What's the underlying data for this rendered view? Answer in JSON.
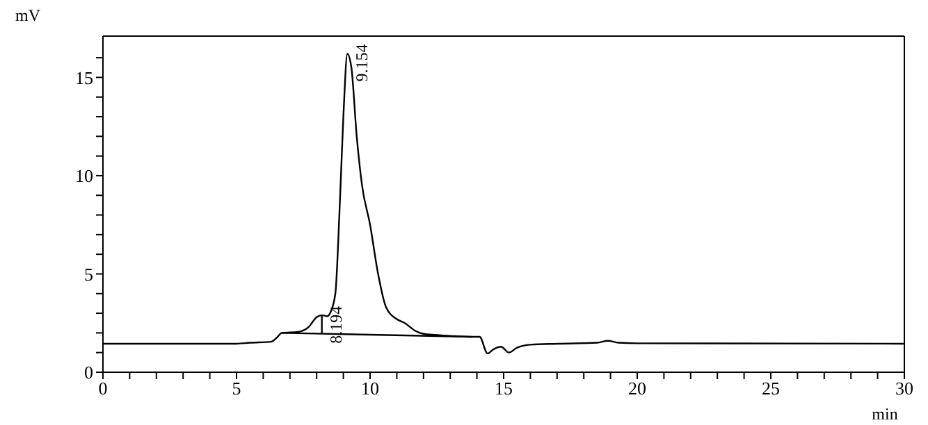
{
  "chart_data": {
    "type": "line",
    "xlabel": "min",
    "ylabel": "mV",
    "xlim": [
      0,
      30
    ],
    "ylim": [
      0,
      17.1
    ],
    "xticks": [
      0,
      {
        "value": 1,
        "label": null
      },
      {
        "value": 2,
        "label": null
      },
      {
        "value": 3,
        "label": null
      },
      {
        "value": 4,
        "label": null
      },
      5,
      {
        "value": 6,
        "label": null
      },
      {
        "value": 7,
        "label": null
      },
      {
        "value": 8,
        "label": null
      },
      {
        "value": 9,
        "label": null
      },
      10,
      {
        "value": 11,
        "label": null
      },
      {
        "value": 12,
        "label": null
      },
      {
        "value": 13,
        "label": null
      },
      {
        "value": 14,
        "label": null
      },
      15,
      {
        "value": 16,
        "label": null
      },
      {
        "value": 17,
        "label": null
      },
      {
        "value": 18,
        "label": null
      },
      {
        "value": 19,
        "label": null
      },
      20,
      {
        "value": 21,
        "label": null
      },
      {
        "value": 22,
        "label": null
      },
      {
        "value": 23,
        "label": null
      },
      {
        "value": 24,
        "label": null
      },
      25,
      {
        "value": 26,
        "label": null
      },
      {
        "value": 27,
        "label": null
      },
      {
        "value": 28,
        "label": null
      },
      {
        "value": 29,
        "label": null
      },
      30
    ],
    "yticks": [
      0,
      {
        "value": 1,
        "label": null
      },
      {
        "value": 2,
        "label": null
      },
      {
        "value": 3,
        "label": null
      },
      {
        "value": 4,
        "label": null
      },
      5,
      {
        "value": 6,
        "label": null
      },
      {
        "value": 7,
        "label": null
      },
      {
        "value": 8,
        "label": null
      },
      {
        "value": 9,
        "label": null
      },
      10,
      {
        "value": 11,
        "label": null
      },
      {
        "value": 12,
        "label": null
      },
      {
        "value": 13,
        "label": null
      },
      {
        "value": 14,
        "label": null
      },
      15,
      {
        "value": 16,
        "label": null
      }
    ],
    "marker": "none",
    "line_style": "solid",
    "series": [
      {
        "color": "#000000",
        "x": [
          0,
          5,
          5.5,
          6.3,
          6.5,
          6.7,
          7.3,
          7.7,
          8.0,
          8.2,
          8.4,
          8.5,
          8.7,
          8.85,
          9.0,
          9.15,
          9.3,
          9.5,
          9.7,
          10.0,
          10.3,
          10.6,
          11.0,
          11.3,
          11.7,
          12,
          13,
          13.8,
          14.1,
          14.4,
          14.6,
          14.9,
          15.2,
          15.5,
          16,
          17,
          18.5,
          18.9,
          19.3,
          20,
          30
        ],
        "values": [
          1.45,
          1.45,
          1.5,
          1.55,
          1.75,
          2.0,
          2.05,
          2.3,
          2.8,
          2.9,
          2.85,
          3.0,
          4.0,
          8,
          13,
          16.2,
          15.5,
          12,
          9.5,
          7.5,
          5.0,
          3.3,
          2.7,
          2.5,
          2.1,
          1.95,
          1.85,
          1.8,
          1.8,
          0.95,
          1.15,
          1.3,
          1.0,
          1.25,
          1.4,
          1.45,
          1.5,
          1.6,
          1.5,
          1.47,
          1.45
        ]
      },
      {
        "color": "#000000",
        "x": [
          6.7,
          13.8
        ],
        "values": [
          2.0,
          1.8
        ]
      },
      {
        "color": "#000000",
        "x": [
          8.194,
          8.194
        ],
        "values": [
          1.96,
          2.87
        ]
      }
    ],
    "annotations": [
      {
        "text": "8.194",
        "x": 8.194,
        "y": 2.87
      },
      {
        "text": "9.154",
        "x": 9.154,
        "y": 16.2
      }
    ]
  }
}
